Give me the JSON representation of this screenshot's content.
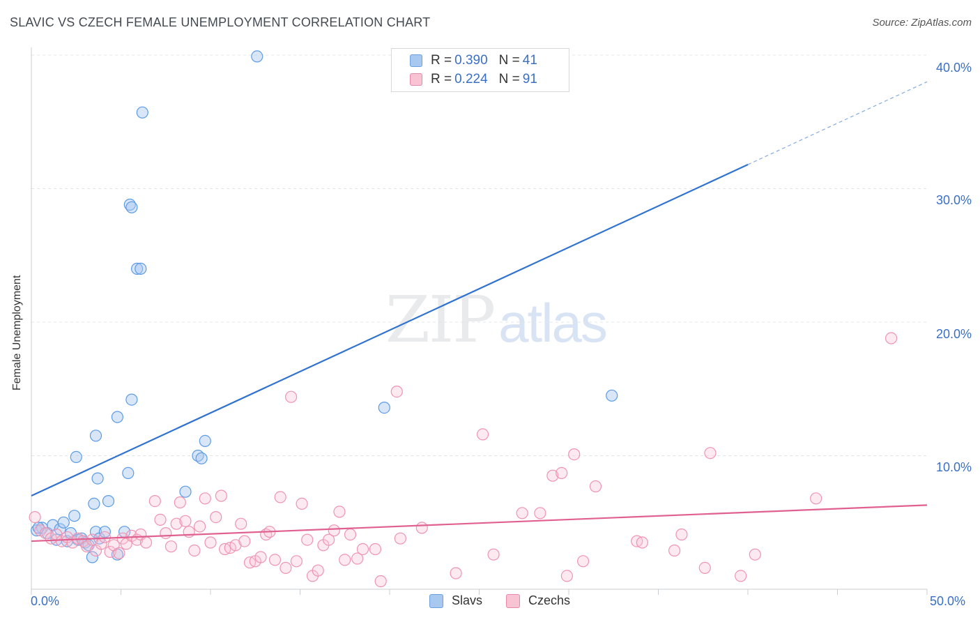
{
  "title": "SLAVIC VS CZECH FEMALE UNEMPLOYMENT CORRELATION CHART",
  "source": "Source: ZipAtlas.com",
  "watermark": {
    "zip": "ZIP",
    "atlas": "atlas"
  },
  "legend_top": {
    "rows": [
      {
        "r_label": "R =",
        "r_value": "0.390",
        "n_label": "N =",
        "n_value": "41",
        "color": "#a8c8f0",
        "border": "#6a9fe0"
      },
      {
        "r_label": "R =",
        "r_value": "0.224",
        "n_label": "N =",
        "n_value": "91",
        "color": "#f8c4d4",
        "border": "#e888a8"
      }
    ]
  },
  "legend_bottom": [
    {
      "label": "Slavs",
      "color": "#a8c8f0",
      "border": "#6a9fe0"
    },
    {
      "label": "Czechs",
      "color": "#f8c4d4",
      "border": "#e888a8"
    }
  ],
  "chart_data": {
    "type": "scatter",
    "title": "SLAVIC VS CZECH FEMALE UNEMPLOYMENT CORRELATION CHART",
    "xlabel": "",
    "ylabel": "Female Unemployment",
    "xlim": [
      0,
      50
    ],
    "ylim": [
      0,
      40
    ],
    "x_tick_labels": [
      "0.0%",
      "50.0%"
    ],
    "y_tick_labels": [
      "10.0%",
      "20.0%",
      "30.0%",
      "40.0%"
    ],
    "y_ticks": [
      10,
      20,
      30,
      40
    ],
    "grid": true,
    "series": [
      {
        "name": "Slavs",
        "color": "#5b9be6",
        "fill": "rgba(168,200,240,0.45)",
        "line_color": "#2f72d0",
        "trend": {
          "x0": 0,
          "y0": 7.0,
          "x1": 40,
          "y1": 31.8,
          "dash_to_x": 50,
          "dash_to_y": 38.0
        },
        "points": [
          [
            0.3,
            4.4
          ],
          [
            0.6,
            4.6
          ],
          [
            0.9,
            4.2
          ],
          [
            1.2,
            4.8
          ],
          [
            1.4,
            3.7
          ],
          [
            1.6,
            4.5
          ],
          [
            1.8,
            5.0
          ],
          [
            2.0,
            3.6
          ],
          [
            2.2,
            4.2
          ],
          [
            2.4,
            5.5
          ],
          [
            2.6,
            3.7
          ],
          [
            2.8,
            3.8
          ],
          [
            3.0,
            3.5
          ],
          [
            3.2,
            3.3
          ],
          [
            3.4,
            2.4
          ],
          [
            3.5,
            6.4
          ],
          [
            3.6,
            4.3
          ],
          [
            3.8,
            3.8
          ],
          [
            2.5,
            9.9
          ],
          [
            3.6,
            11.5
          ],
          [
            3.7,
            8.3
          ],
          [
            4.1,
            4.3
          ],
          [
            4.3,
            6.6
          ],
          [
            4.8,
            2.6
          ],
          [
            4.8,
            12.9
          ],
          [
            5.2,
            4.3
          ],
          [
            5.4,
            8.7
          ],
          [
            5.6,
            14.2
          ],
          [
            5.5,
            28.8
          ],
          [
            5.6,
            28.6
          ],
          [
            5.9,
            24.0
          ],
          [
            6.1,
            24.0
          ],
          [
            6.2,
            35.7
          ],
          [
            8.6,
            7.3
          ],
          [
            9.3,
            10.0
          ],
          [
            9.5,
            9.8
          ],
          [
            9.7,
            11.1
          ],
          [
            12.6,
            39.9
          ],
          [
            19.7,
            13.6
          ],
          [
            32.4,
            14.5
          ],
          [
            0.4,
            4.6
          ]
        ]
      },
      {
        "name": "Czechs",
        "color": "#ef93b1",
        "fill": "rgba(248,196,212,0.35)",
        "line_color": "#e0608f",
        "trend": {
          "x0": 0,
          "y0": 3.6,
          "x1": 50,
          "y1": 6.3
        },
        "points": [
          [
            0.2,
            5.4
          ],
          [
            0.5,
            4.4
          ],
          [
            0.8,
            4.2
          ],
          [
            1.1,
            3.8
          ],
          [
            1.4,
            4.1
          ],
          [
            1.7,
            3.6
          ],
          [
            2.0,
            3.9
          ],
          [
            2.3,
            3.5
          ],
          [
            2.6,
            3.8
          ],
          [
            2.9,
            3.6
          ],
          [
            3.1,
            3.2
          ],
          [
            3.4,
            3.7
          ],
          [
            3.6,
            2.9
          ],
          [
            3.9,
            3.4
          ],
          [
            4.1,
            3.9
          ],
          [
            4.4,
            2.8
          ],
          [
            4.6,
            3.3
          ],
          [
            4.9,
            2.7
          ],
          [
            5.1,
            3.8
          ],
          [
            5.3,
            3.4
          ],
          [
            5.6,
            4.0
          ],
          [
            5.9,
            3.7
          ],
          [
            6.1,
            4.1
          ],
          [
            6.4,
            3.5
          ],
          [
            6.9,
            6.6
          ],
          [
            7.2,
            5.2
          ],
          [
            7.5,
            4.2
          ],
          [
            7.8,
            3.2
          ],
          [
            8.1,
            4.9
          ],
          [
            8.3,
            6.5
          ],
          [
            8.6,
            5.1
          ],
          [
            8.8,
            4.3
          ],
          [
            9.1,
            2.9
          ],
          [
            9.4,
            4.7
          ],
          [
            9.7,
            6.8
          ],
          [
            10.0,
            3.5
          ],
          [
            10.3,
            5.4
          ],
          [
            10.6,
            7.0
          ],
          [
            10.8,
            3.0
          ],
          [
            11.1,
            3.1
          ],
          [
            11.4,
            3.3
          ],
          [
            11.7,
            4.9
          ],
          [
            11.9,
            3.6
          ],
          [
            12.2,
            2.0
          ],
          [
            12.5,
            2.1
          ],
          [
            12.8,
            2.4
          ],
          [
            13.1,
            4.1
          ],
          [
            13.3,
            4.3
          ],
          [
            13.6,
            2.2
          ],
          [
            13.9,
            6.9
          ],
          [
            14.2,
            1.6
          ],
          [
            14.5,
            14.4
          ],
          [
            14.8,
            2.1
          ],
          [
            15.1,
            6.4
          ],
          [
            15.4,
            3.7
          ],
          [
            15.7,
            1.0
          ],
          [
            16.0,
            1.4
          ],
          [
            16.3,
            3.3
          ],
          [
            16.6,
            3.7
          ],
          [
            16.9,
            4.4
          ],
          [
            17.2,
            5.8
          ],
          [
            17.5,
            2.2
          ],
          [
            17.8,
            4.1
          ],
          [
            18.2,
            2.3
          ],
          [
            18.5,
            3.0
          ],
          [
            19.2,
            3.0
          ],
          [
            19.5,
            0.6
          ],
          [
            20.4,
            14.8
          ],
          [
            20.6,
            3.8
          ],
          [
            21.8,
            4.6
          ],
          [
            23.7,
            1.2
          ],
          [
            25.2,
            11.6
          ],
          [
            25.8,
            2.6
          ],
          [
            27.4,
            5.7
          ],
          [
            28.4,
            5.7
          ],
          [
            29.1,
            8.5
          ],
          [
            29.6,
            8.7
          ],
          [
            29.9,
            1.0
          ],
          [
            30.3,
            10.1
          ],
          [
            30.8,
            2.1
          ],
          [
            31.5,
            7.7
          ],
          [
            33.8,
            3.6
          ],
          [
            34.1,
            3.5
          ],
          [
            35.9,
            2.9
          ],
          [
            36.3,
            4.1
          ],
          [
            37.6,
            1.6
          ],
          [
            37.9,
            10.2
          ],
          [
            39.6,
            1.0
          ],
          [
            40.4,
            2.6
          ],
          [
            43.8,
            6.8
          ],
          [
            48.0,
            18.8
          ]
        ]
      }
    ]
  }
}
